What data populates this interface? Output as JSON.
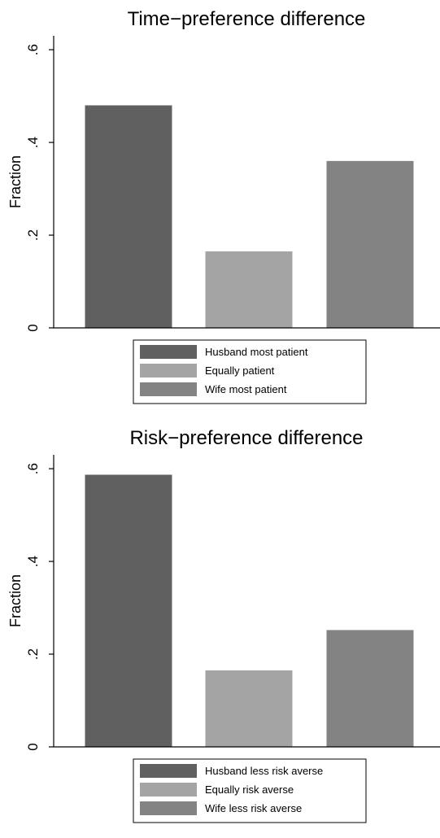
{
  "chart_data": [
    {
      "type": "bar",
      "title": "Time−preference difference",
      "ylabel": "Fraction",
      "xlabel": "",
      "ylim": [
        0,
        0.63
      ],
      "yticks": [
        0,
        0.2,
        0.4,
        0.6
      ],
      "ytick_labels": [
        "0",
        ".2",
        ".4",
        ".6"
      ],
      "grid": false,
      "legend_position": "bottom",
      "series": [
        {
          "name": "Husband most patient",
          "values": [
            0.48
          ],
          "color": "#606060"
        },
        {
          "name": "Equally patient",
          "values": [
            0.165
          ],
          "color": "#a4a4a4"
        },
        {
          "name": "Wife most patient",
          "values": [
            0.36
          ],
          "color": "#838383"
        }
      ]
    },
    {
      "type": "bar",
      "title": "Risk−preference difference",
      "ylabel": "Fraction",
      "xlabel": "",
      "ylim": [
        0,
        0.63
      ],
      "yticks": [
        0,
        0.2,
        0.4,
        0.6
      ],
      "ytick_labels": [
        "0",
        ".2",
        ".4",
        ".6"
      ],
      "grid": false,
      "legend_position": "bottom",
      "series": [
        {
          "name": "Husband less risk averse",
          "values": [
            0.587
          ],
          "color": "#606060"
        },
        {
          "name": "Equally risk averse",
          "values": [
            0.165
          ],
          "color": "#a4a4a4"
        },
        {
          "name": "Wife less risk averse",
          "values": [
            0.252
          ],
          "color": "#838383"
        }
      ]
    }
  ]
}
